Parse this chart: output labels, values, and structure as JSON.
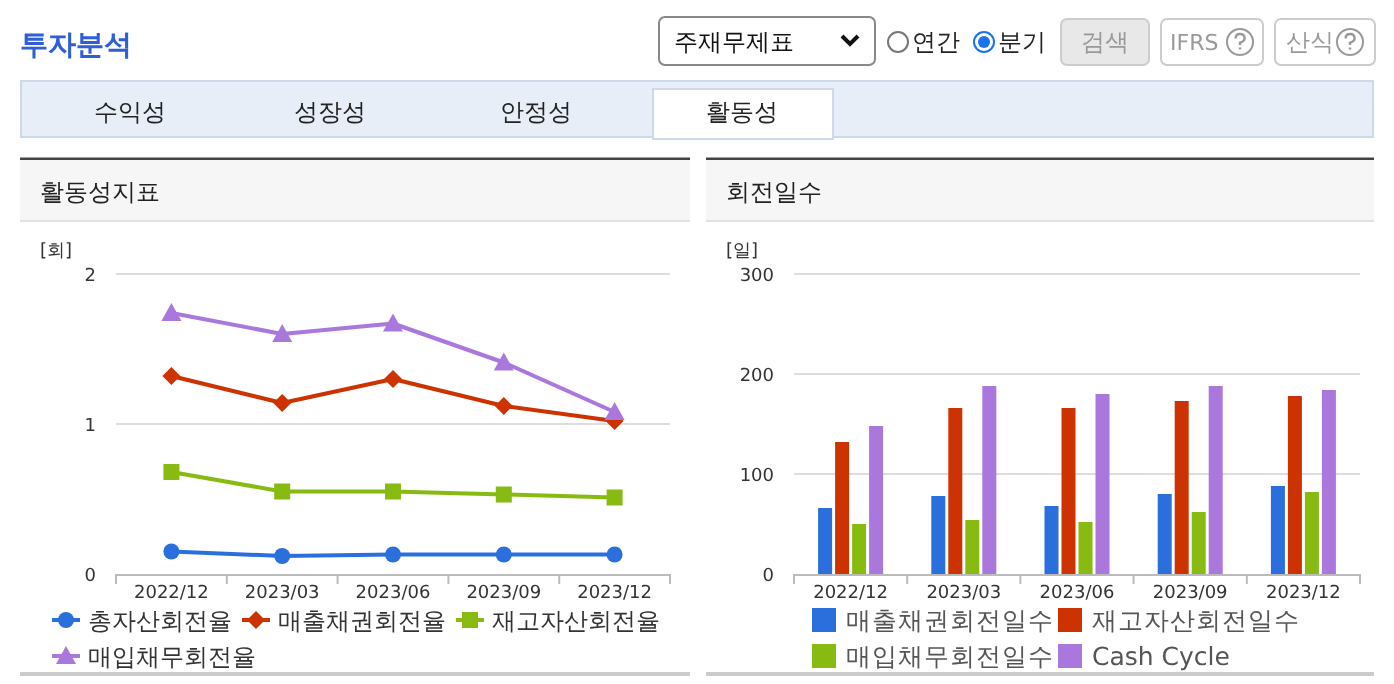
{
  "chart_data": [
    {
      "type": "other",
      "title": "투자분석",
      "annotations": [
        "주재무제표",
        "연간",
        "분기",
        "검색",
        "IFRS",
        "산식",
        "수익성",
        "성장성",
        "안정성",
        "활동성"
      ]
    },
    {
      "type": "line",
      "title": "활동성지표",
      "ylabel": "[회]",
      "categories": [
        "2022/12",
        "2023/03",
        "2023/06",
        "2023/09",
        "2023/12"
      ],
      "ylim": [
        0,
        2
      ],
      "yticks": [
        0,
        1,
        2
      ],
      "grid": "y",
      "legend": "bottom",
      "series": [
        {
          "name": "총자산회전율",
          "color": "#2a6fdb",
          "marker": "circle",
          "values": [
            0.15,
            0.12,
            0.13,
            0.13,
            0.13
          ]
        },
        {
          "name": "매출채권회전율",
          "color": "#cc3300",
          "marker": "diamond",
          "values": [
            1.32,
            1.14,
            1.3,
            1.12,
            1.02
          ]
        },
        {
          "name": "재고자산회전율",
          "color": "#88bb11",
          "marker": "square",
          "values": [
            0.68,
            0.55,
            0.55,
            0.53,
            0.51
          ]
        },
        {
          "name": "매입채무회전율",
          "color": "#aa77dd",
          "marker": "triangle",
          "values": [
            1.74,
            1.6,
            1.67,
            1.41,
            1.08
          ]
        }
      ]
    },
    {
      "type": "bar",
      "title": "회전일수",
      "ylabel": "[일]",
      "categories": [
        "2022/12",
        "2023/03",
        "2023/06",
        "2023/09",
        "2023/12"
      ],
      "ylim": [
        0,
        300
      ],
      "yticks": [
        0,
        100,
        200,
        300
      ],
      "grid": "y",
      "legend": "bottom",
      "series": [
        {
          "name": "매출채권회전일수",
          "color": "#2a6fdb",
          "values": [
            66,
            78,
            68,
            80,
            88
          ]
        },
        {
          "name": "재고자산회전일수",
          "color": "#cc3300",
          "values": [
            132,
            166,
            166,
            173,
            178
          ]
        },
        {
          "name": "매입채무회전일수",
          "color": "#88bb11",
          "values": [
            50,
            54,
            52,
            62,
            82
          ]
        },
        {
          "name": "Cash Cycle",
          "color": "#aa77dd",
          "values": [
            148,
            188,
            180,
            188,
            184
          ]
        }
      ]
    }
  ]
}
